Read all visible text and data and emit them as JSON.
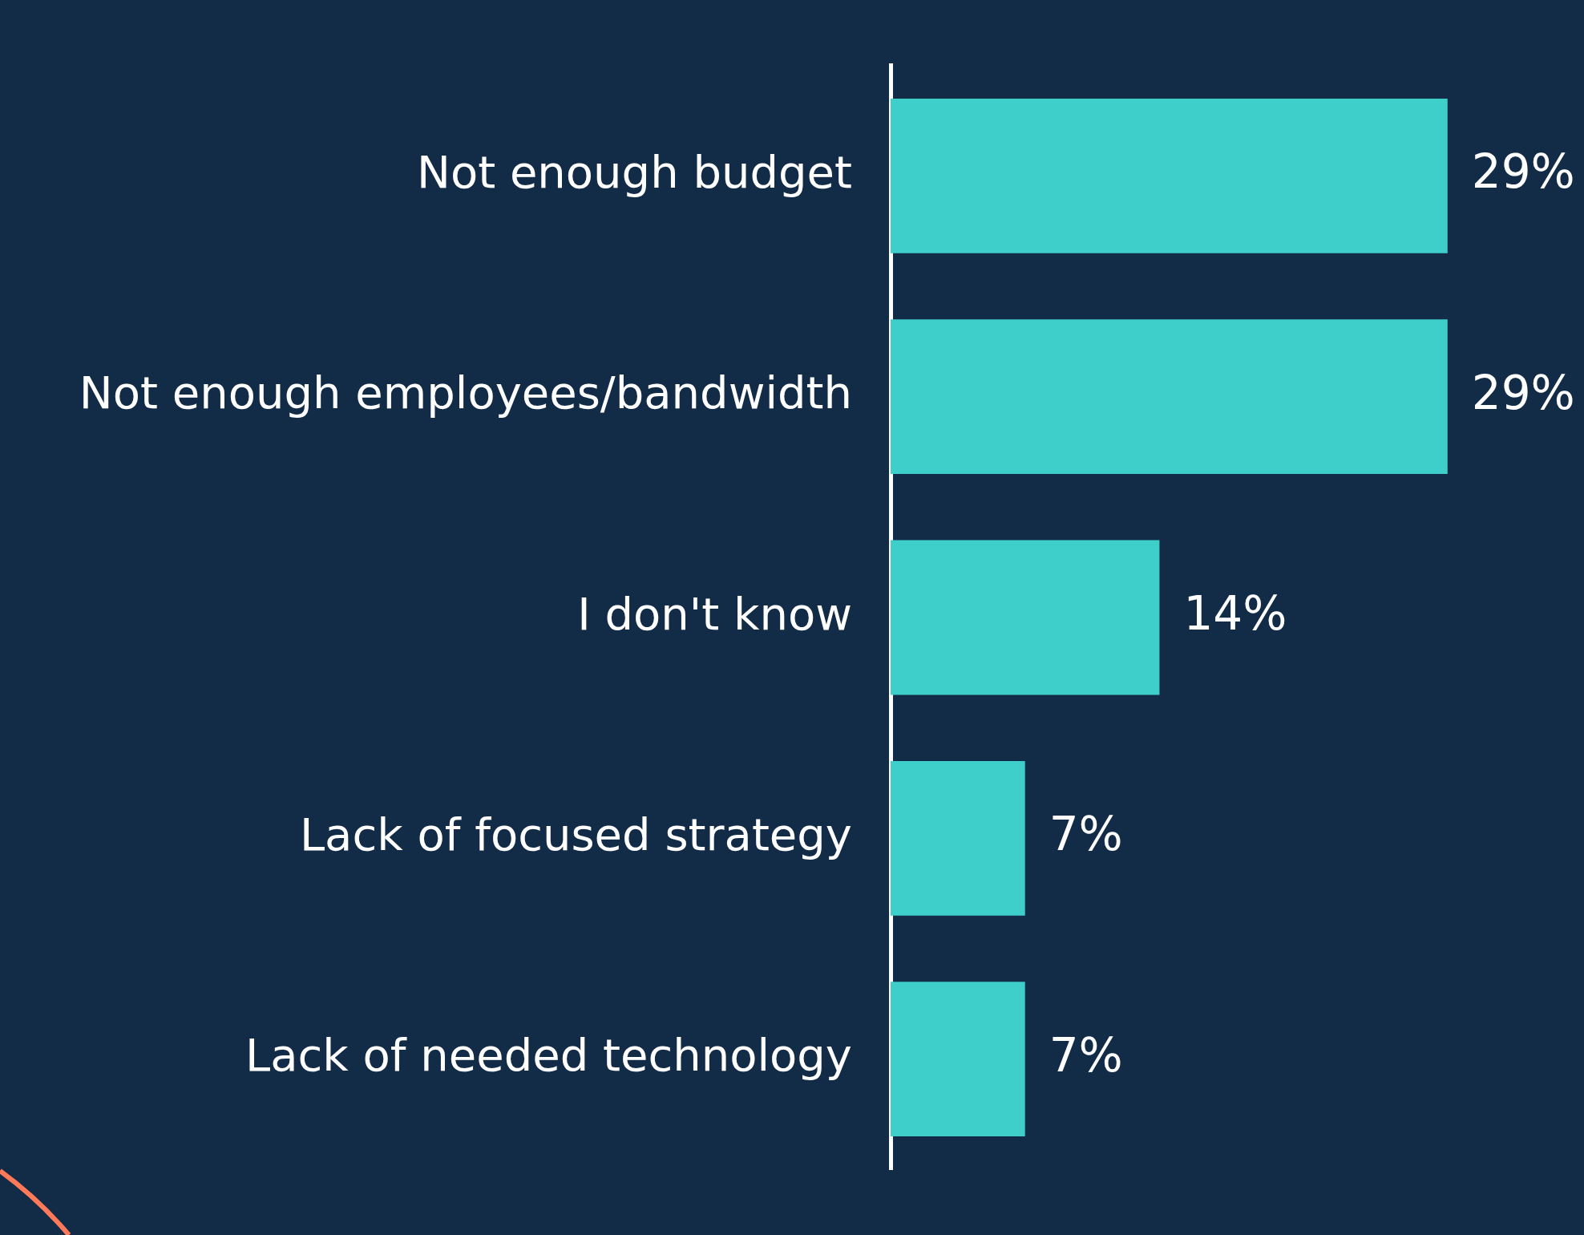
{
  "chart_data": {
    "type": "bar",
    "orientation": "horizontal",
    "categories": [
      "Not enough budget",
      "Not enough employees/bandwidth",
      "I don't know",
      "Lack of focused strategy",
      "Lack of needed technology"
    ],
    "values": [
      29,
      29,
      14,
      7,
      7
    ],
    "value_labels": [
      "29%",
      "29%",
      "14%",
      "7%",
      "7%"
    ],
    "color": "#3ecfcb",
    "grid": false,
    "legend": false
  }
}
